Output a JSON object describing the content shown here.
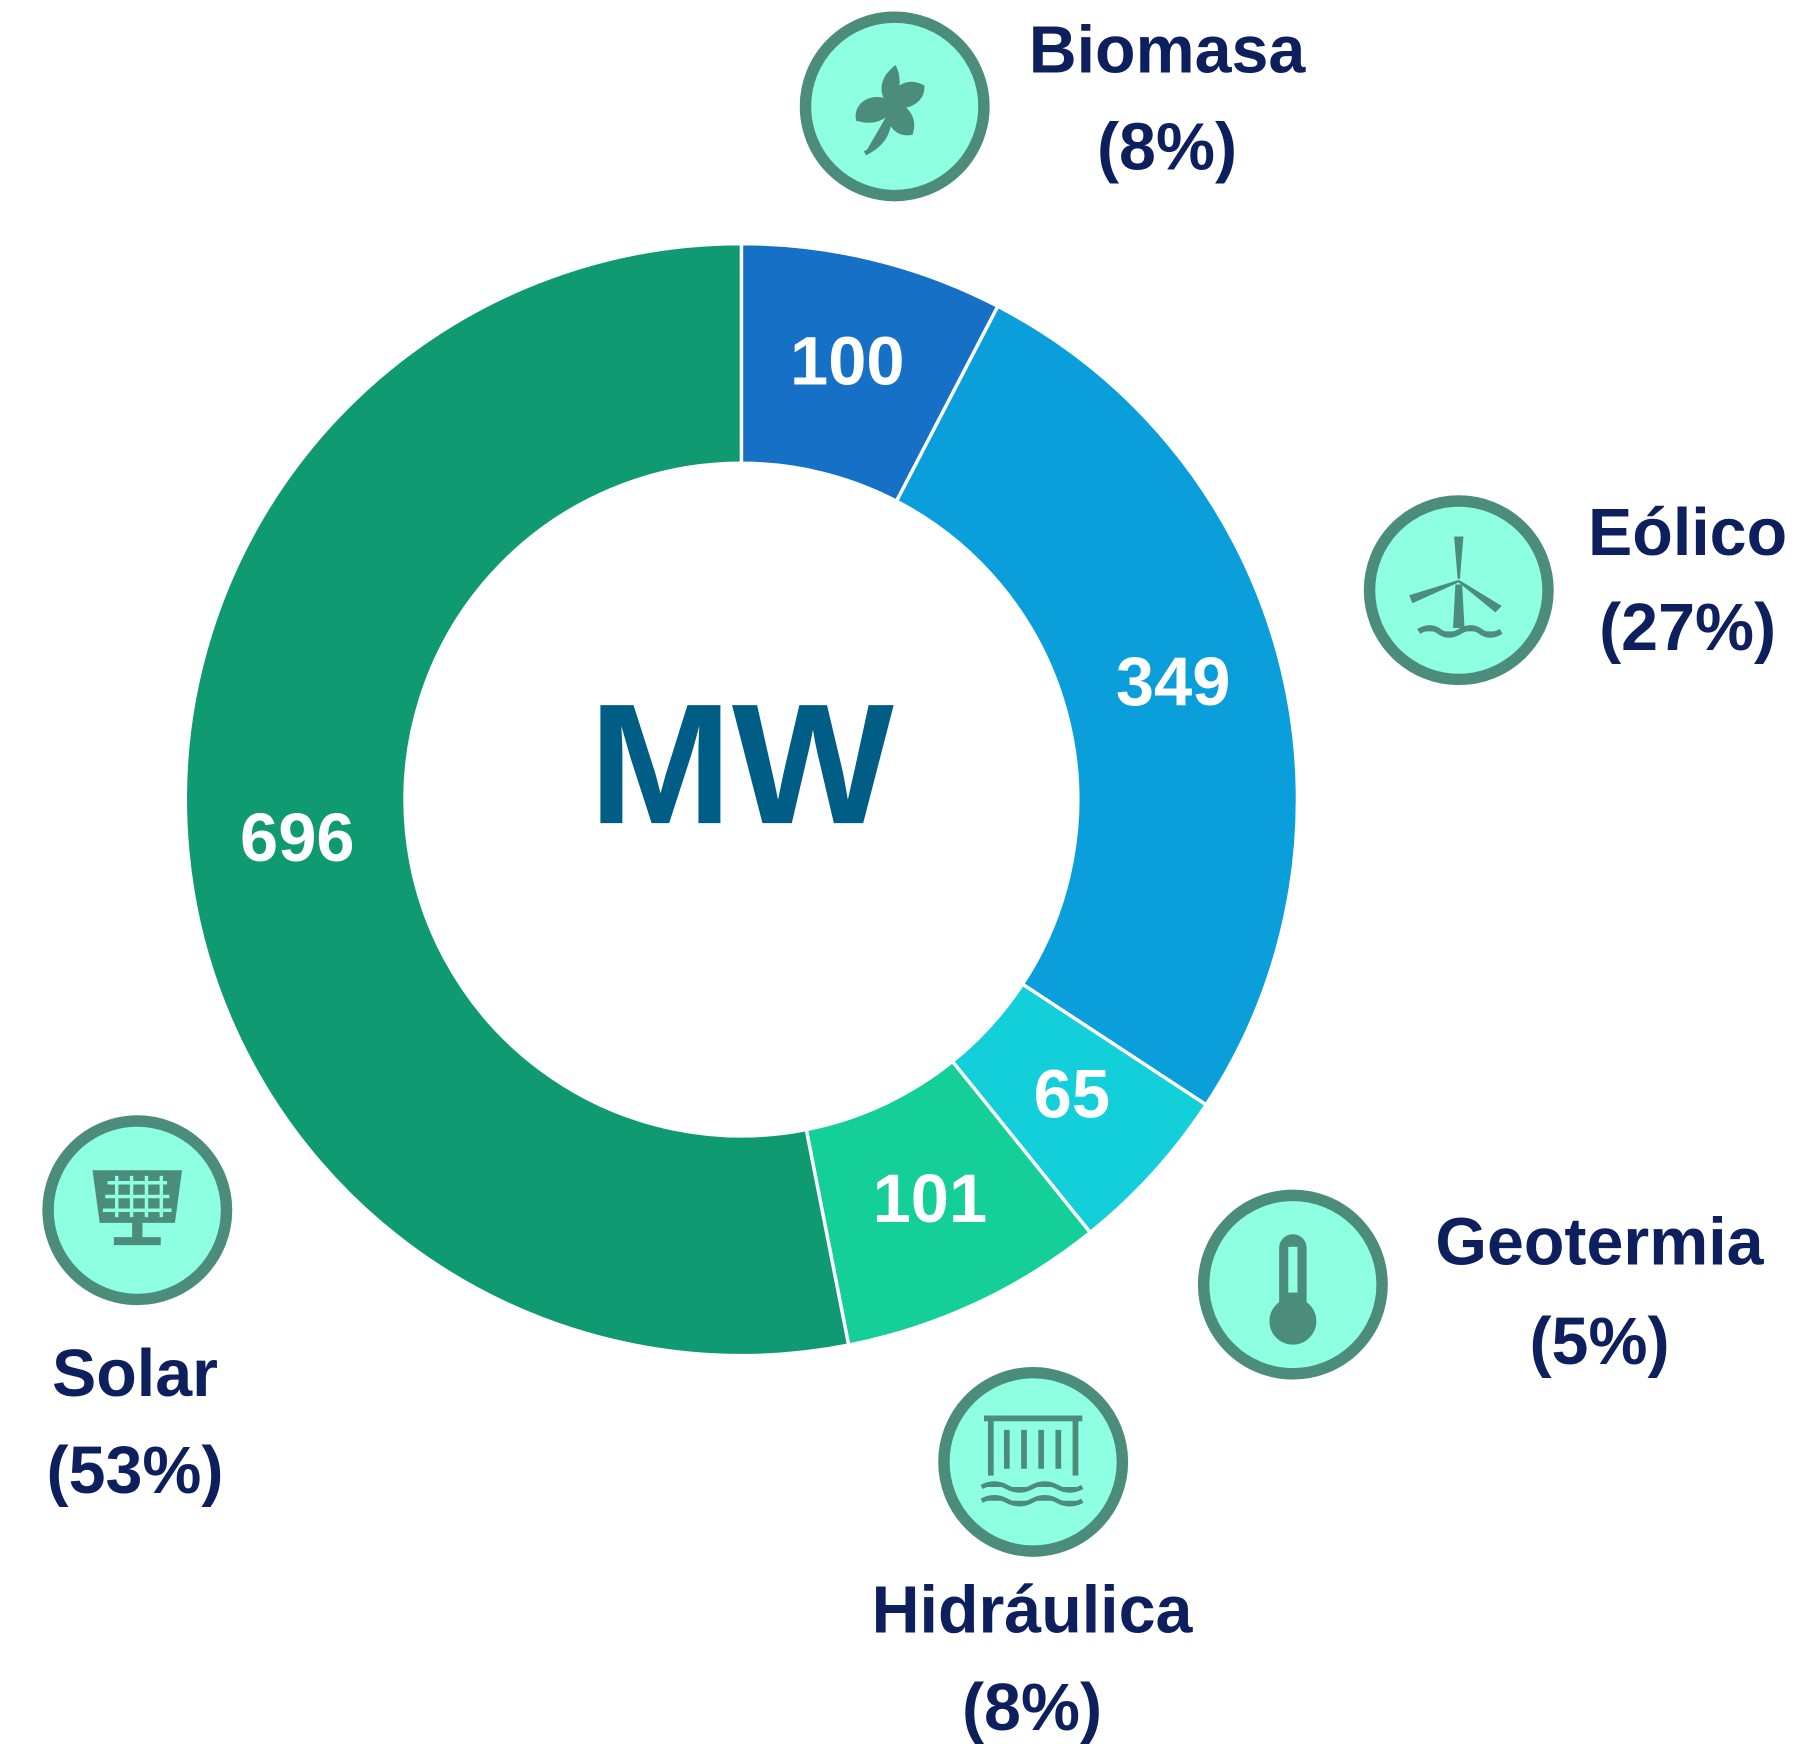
{
  "chart_data": {
    "type": "donut",
    "center_label": "MW",
    "categories": [
      "Biomasa",
      "Eólico",
      "Geotermia",
      "Hidráulica",
      "Solar"
    ],
    "percent_labels": [
      "(8%)",
      "(27%)",
      "(5%)",
      "(8%)",
      "(53%)"
    ],
    "values": [
      100,
      349,
      65,
      101,
      696
    ],
    "colors": [
      "#1570c6",
      "#0a9edb",
      "#12cfda",
      "#14cf98",
      "#109a72"
    ]
  }
}
